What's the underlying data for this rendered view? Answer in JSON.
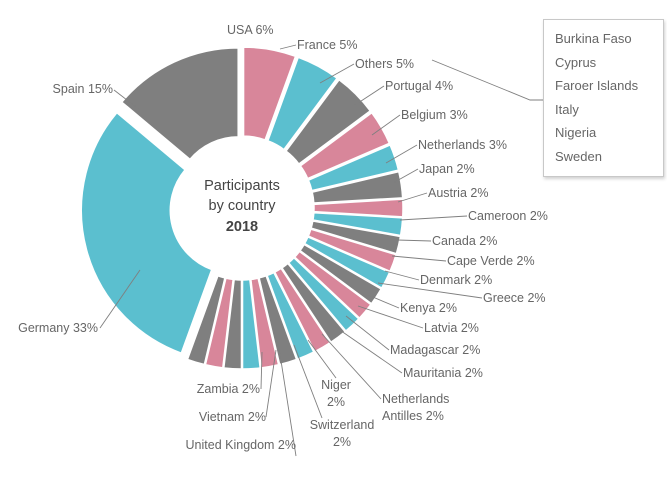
{
  "chart_data": {
    "type": "pie",
    "style": "doughnut-exploded",
    "center_label": {
      "line1": "Participants",
      "line2": "by country",
      "line3": "2018"
    },
    "colors": {
      "teal": "#5bbfcf",
      "pink": "#d8869a",
      "gray": "#7f7f7f"
    },
    "slices": [
      {
        "label": "USA 6%",
        "value": 6,
        "color": "pink"
      },
      {
        "label": "France 5%",
        "value": 5,
        "color": "teal"
      },
      {
        "label": "Others 5%",
        "value": 5,
        "color": "gray"
      },
      {
        "label": "Portugal 4%",
        "value": 4,
        "color": "pink"
      },
      {
        "label": "Belgium 3%",
        "value": 3,
        "color": "teal"
      },
      {
        "label": "Netherlands 3%",
        "value": 3,
        "color": "gray"
      },
      {
        "label": "Japan 2%",
        "value": 2,
        "color": "pink"
      },
      {
        "label": "Austria 2%",
        "value": 2,
        "color": "teal"
      },
      {
        "label": "Cameroon 2%",
        "value": 2,
        "color": "gray"
      },
      {
        "label": "Canada 2%",
        "value": 2,
        "color": "pink"
      },
      {
        "label": "Cape Verde 2%",
        "value": 2,
        "color": "teal"
      },
      {
        "label": "Denmark 2%",
        "value": 2,
        "color": "gray"
      },
      {
        "label": "Greece 2%",
        "value": 2,
        "color": "pink"
      },
      {
        "label": "Kenya 2%",
        "value": 2,
        "color": "teal"
      },
      {
        "label": "Latvia 2%",
        "value": 2,
        "color": "gray"
      },
      {
        "label": "Madagascar 2%",
        "value": 2,
        "color": "pink"
      },
      {
        "label": "Mauritania 2%",
        "value": 2,
        "color": "teal"
      },
      {
        "label": "Netherlands Antilles 2%",
        "value": 2,
        "color": "gray"
      },
      {
        "label": "Niger 2%",
        "value": 2,
        "color": "pink"
      },
      {
        "label": "Switzerland 2%",
        "value": 2,
        "color": "teal"
      },
      {
        "label": "United Kingdom 2%",
        "value": 2,
        "color": "gray"
      },
      {
        "label": "Vietnam 2%",
        "value": 2,
        "color": "pink"
      },
      {
        "label": "Zambia 2%",
        "value": 2,
        "color": "gray"
      },
      {
        "label": "Germany 33%",
        "value": 33,
        "color": "teal"
      },
      {
        "label": "Spain 15%",
        "value": 15,
        "color": "gray"
      }
    ],
    "others_breakdown": [
      "Burkina Faso",
      "Cyprus",
      "Faroer Islands",
      "Italy",
      "Nigeria",
      "Sweden"
    ]
  }
}
